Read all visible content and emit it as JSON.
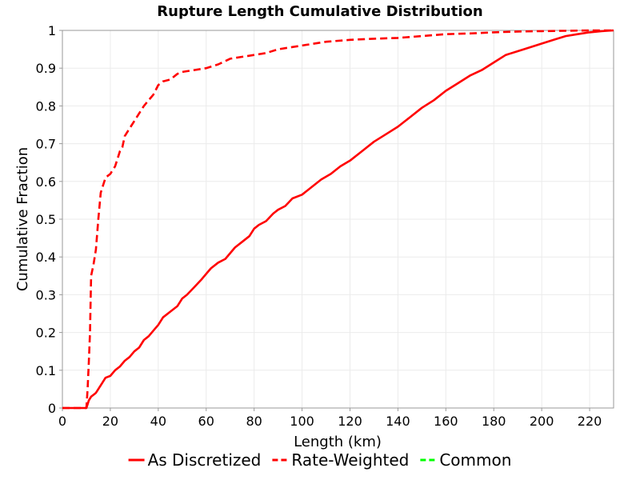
{
  "chart_data": {
    "type": "line",
    "title": "Rupture Length Cumulative Distribution",
    "xlabel": "Length (km)",
    "ylabel": "Cumulative Fraction",
    "xlim": [
      0,
      230
    ],
    "ylim": [
      0,
      1
    ],
    "xticks": [
      0,
      20,
      40,
      60,
      80,
      100,
      120,
      140,
      160,
      180,
      200,
      220
    ],
    "yticks": [
      0,
      0.1,
      0.2,
      0.3,
      0.4,
      0.5,
      0.6,
      0.7,
      0.8,
      0.9,
      1
    ],
    "grid": true,
    "legend_position": "bottom",
    "series": [
      {
        "name": "As Discretized",
        "color": "#ff0000",
        "dash": "solid",
        "x": [
          0,
          10,
          10.5,
          11,
          12,
          13,
          14,
          16,
          18,
          20,
          22,
          24,
          26,
          28,
          30,
          32,
          34,
          36,
          38,
          40,
          42,
          45,
          48,
          50,
          52,
          55,
          58,
          60,
          62,
          65,
          68,
          70,
          72,
          75,
          78,
          80,
          82,
          85,
          88,
          90,
          93,
          96,
          100,
          104,
          108,
          112,
          116,
          120,
          125,
          130,
          135,
          140,
          145,
          150,
          155,
          160,
          165,
          170,
          175,
          180,
          185,
          190,
          195,
          200,
          205,
          210,
          215,
          220,
          225,
          230
        ],
        "y": [
          0,
          0,
          0.01,
          0.02,
          0.03,
          0.035,
          0.04,
          0.06,
          0.08,
          0.085,
          0.1,
          0.11,
          0.125,
          0.135,
          0.15,
          0.16,
          0.18,
          0.19,
          0.205,
          0.22,
          0.24,
          0.255,
          0.27,
          0.29,
          0.3,
          0.32,
          0.34,
          0.355,
          0.37,
          0.385,
          0.395,
          0.41,
          0.425,
          0.44,
          0.455,
          0.475,
          0.485,
          0.495,
          0.515,
          0.525,
          0.535,
          0.555,
          0.565,
          0.585,
          0.605,
          0.62,
          0.64,
          0.655,
          0.68,
          0.705,
          0.725,
          0.745,
          0.77,
          0.795,
          0.815,
          0.84,
          0.86,
          0.88,
          0.895,
          0.915,
          0.935,
          0.945,
          0.955,
          0.965,
          0.975,
          0.985,
          0.99,
          0.995,
          0.998,
          1
        ]
      },
      {
        "name": "Rate-Weighted",
        "color": "#ff0000",
        "dash": "dashed",
        "x": [
          0,
          10,
          10.5,
          11,
          11.5,
          12,
          13,
          14,
          15,
          16,
          17,
          18,
          19,
          20,
          21,
          22,
          23,
          24,
          25,
          26,
          27,
          28,
          29,
          30,
          32,
          34,
          36,
          38,
          40,
          42,
          45,
          48,
          50,
          55,
          60,
          65,
          70,
          75,
          80,
          85,
          90,
          100,
          110,
          120,
          130,
          140,
          150,
          160,
          170,
          180,
          190,
          200,
          210,
          220,
          230
        ],
        "y": [
          0,
          0,
          0.05,
          0.12,
          0.2,
          0.35,
          0.38,
          0.42,
          0.5,
          0.57,
          0.59,
          0.61,
          0.615,
          0.62,
          0.63,
          0.64,
          0.66,
          0.68,
          0.69,
          0.72,
          0.73,
          0.74,
          0.75,
          0.76,
          0.78,
          0.8,
          0.815,
          0.83,
          0.855,
          0.865,
          0.87,
          0.885,
          0.89,
          0.895,
          0.9,
          0.91,
          0.925,
          0.93,
          0.935,
          0.94,
          0.95,
          0.96,
          0.97,
          0.975,
          0.978,
          0.98,
          0.985,
          0.99,
          0.992,
          0.995,
          0.997,
          0.998,
          0.999,
          1,
          1
        ]
      },
      {
        "name": "Common",
        "color": "#00ff00",
        "dash": "dashed",
        "x": [],
        "y": []
      }
    ]
  }
}
